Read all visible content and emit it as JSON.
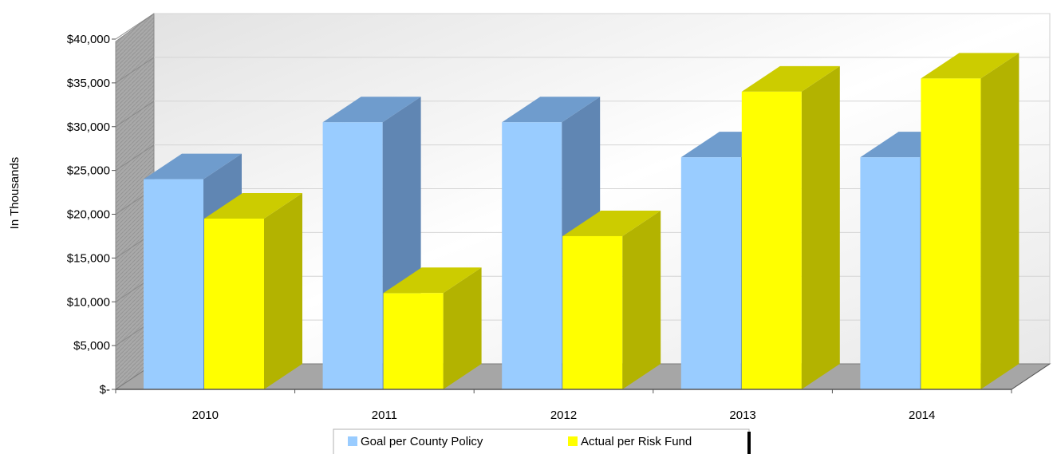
{
  "chart_data": {
    "type": "bar",
    "title": "",
    "xlabel": "",
    "ylabel": "In Thousands",
    "categories": [
      "2010",
      "2011",
      "2012",
      "2013",
      "2014"
    ],
    "series": [
      {
        "name": "Goal per County Policy",
        "values": [
          24000,
          30500,
          30500,
          26500,
          26500
        ],
        "color": "#99ccff"
      },
      {
        "name": "Actual per Risk Fund",
        "values": [
          19500,
          11000,
          17500,
          34000,
          35500
        ],
        "color": "#ffff00"
      }
    ],
    "ylim": [
      0,
      40000
    ],
    "yticks": [
      0,
      5000,
      10000,
      15000,
      20000,
      25000,
      30000,
      35000,
      40000
    ],
    "ytick_labels": [
      "$-",
      "$5,000",
      "$10,000",
      "$15,000",
      "$20,000",
      "$25,000",
      "$30,000",
      "$35,000",
      "$40,000"
    ],
    "grid": true,
    "legend_position": "bottom",
    "style": "3d-column"
  }
}
